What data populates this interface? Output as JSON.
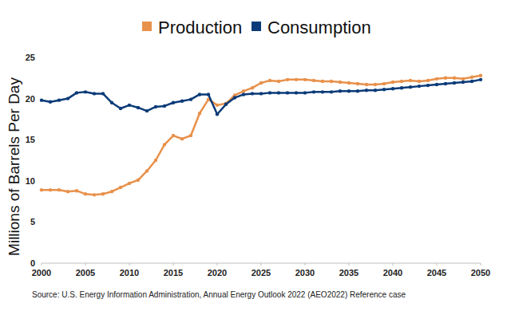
{
  "chart_data": {
    "type": "line",
    "y_label": "Millions of Barrels Per Day",
    "source": "Source: U.S. Energy Information Administration, Annual Energy Outlook 2022 (AEO2022) Reference case",
    "legend": "top",
    "grid": false,
    "marker": "circle",
    "x": [
      2000,
      2001,
      2002,
      2003,
      2004,
      2005,
      2006,
      2007,
      2008,
      2009,
      2010,
      2011,
      2012,
      2013,
      2014,
      2015,
      2016,
      2017,
      2018,
      2019,
      2020,
      2021,
      2022,
      2023,
      2024,
      2025,
      2026,
      2027,
      2028,
      2029,
      2030,
      2031,
      2032,
      2033,
      2034,
      2035,
      2036,
      2037,
      2038,
      2039,
      2040,
      2041,
      2042,
      2043,
      2044,
      2045,
      2046,
      2047,
      2048,
      2049,
      2050
    ],
    "xlim": [
      2000,
      2050
    ],
    "xticks": [
      2000,
      2005,
      2010,
      2015,
      2020,
      2025,
      2030,
      2035,
      2040,
      2045,
      2050
    ],
    "ylim": [
      0,
      25
    ],
    "yticks": [
      0,
      5,
      10,
      15,
      20,
      25
    ],
    "series": [
      {
        "name": "Production",
        "color": "#e8914b",
        "values": [
          8.9,
          8.9,
          8.9,
          8.7,
          8.8,
          8.4,
          8.3,
          8.4,
          8.7,
          9.2,
          9.7,
          10.1,
          11.2,
          12.5,
          14.4,
          15.5,
          15.1,
          15.5,
          18.2,
          19.9,
          19.2,
          19.4,
          20.4,
          20.9,
          21.3,
          21.9,
          22.2,
          22.1,
          22.3,
          22.3,
          22.3,
          22.2,
          22.1,
          22.1,
          22.0,
          21.9,
          21.8,
          21.7,
          21.7,
          21.8,
          22.0,
          22.1,
          22.2,
          22.1,
          22.2,
          22.4,
          22.5,
          22.5,
          22.4,
          22.6,
          22.8
        ]
      },
      {
        "name": "Consumption",
        "color": "#0b3b78",
        "values": [
          19.8,
          19.6,
          19.8,
          20.0,
          20.7,
          20.8,
          20.6,
          20.6,
          19.5,
          18.8,
          19.2,
          18.9,
          18.5,
          19.0,
          19.1,
          19.5,
          19.7,
          19.9,
          20.5,
          20.5,
          18.1,
          19.3,
          20.1,
          20.5,
          20.6,
          20.6,
          20.7,
          20.7,
          20.7,
          20.7,
          20.7,
          20.8,
          20.8,
          20.8,
          20.9,
          20.9,
          20.9,
          21.0,
          21.0,
          21.1,
          21.2,
          21.3,
          21.4,
          21.5,
          21.6,
          21.7,
          21.8,
          21.9,
          22.0,
          22.1,
          22.3
        ]
      }
    ]
  }
}
